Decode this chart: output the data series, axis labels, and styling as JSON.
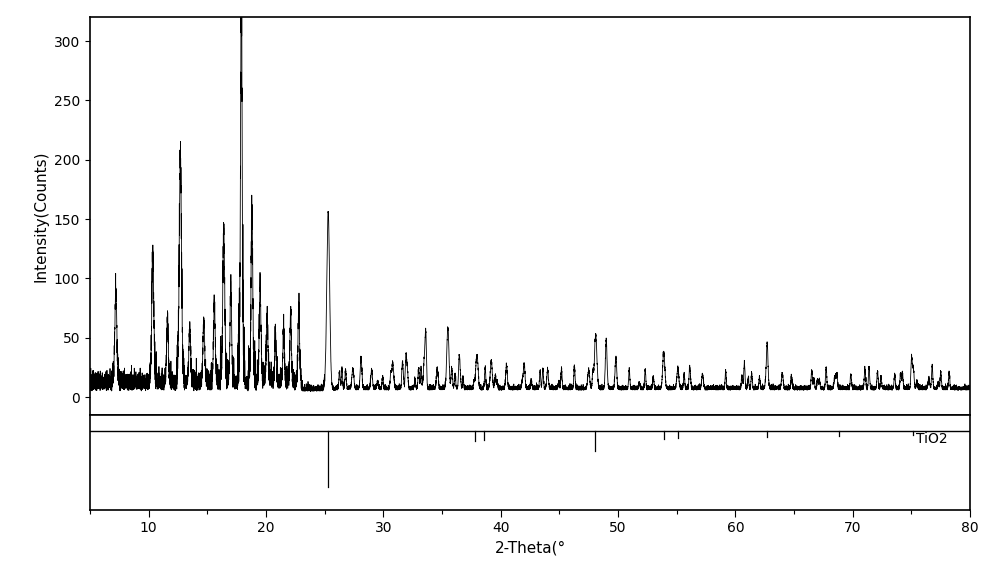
{
  "title": "",
  "xlabel": "2-Theta(°",
  "ylabel": "Intensity(Counts)",
  "xlim": [
    5,
    80
  ],
  "ylim_main": [
    -15,
    320
  ],
  "ylim_ref": [
    -25,
    5
  ],
  "background_color": "#ffffff",
  "line_color": "#000000",
  "ref_label": "TiO2",
  "ref_peaks": [
    25.3,
    37.8,
    38.6,
    48.0,
    53.9,
    55.1,
    62.7,
    68.8,
    75.1
  ],
  "ref_peak_heights_norm": [
    1.0,
    0.18,
    0.16,
    0.35,
    0.14,
    0.13,
    0.11,
    0.09,
    0.08
  ],
  "xticks": [
    10,
    20,
    30,
    40,
    50,
    60,
    70,
    80
  ],
  "yticks_main": [
    0,
    50,
    100,
    150,
    200,
    250,
    300
  ],
  "seed": 42
}
